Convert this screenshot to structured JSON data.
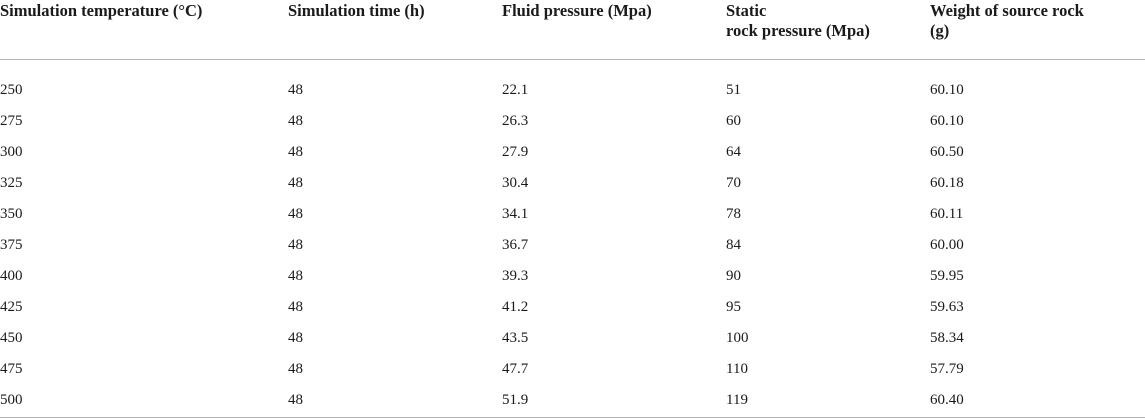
{
  "table": {
    "headers": [
      {
        "line1": "Simulation temperature (°C)",
        "line2": ""
      },
      {
        "line1": "Simulation time (h)",
        "line2": ""
      },
      {
        "line1": "Fluid pressure (Mpa)",
        "line2": ""
      },
      {
        "line1": "Static",
        "line2": "rock pressure (Mpa)"
      },
      {
        "line1": "Weight of source rock",
        "line2": "(g)"
      }
    ],
    "rows": [
      [
        "250",
        "48",
        "22.1",
        "51",
        "60.10"
      ],
      [
        "275",
        "48",
        "26.3",
        "60",
        "60.10"
      ],
      [
        "300",
        "48",
        "27.9",
        "64",
        "60.50"
      ],
      [
        "325",
        "48",
        "30.4",
        "70",
        "60.18"
      ],
      [
        "350",
        "48",
        "34.1",
        "78",
        "60.11"
      ],
      [
        "375",
        "48",
        "36.7",
        "84",
        "60.00"
      ],
      [
        "400",
        "48",
        "39.3",
        "90",
        "59.95"
      ],
      [
        "425",
        "48",
        "41.2",
        "95",
        "59.63"
      ],
      [
        "450",
        "48",
        "43.5",
        "100",
        "58.34"
      ],
      [
        "475",
        "48",
        "47.7",
        "110",
        "57.79"
      ],
      [
        "500",
        "48",
        "51.9",
        "119",
        "60.40"
      ]
    ]
  }
}
